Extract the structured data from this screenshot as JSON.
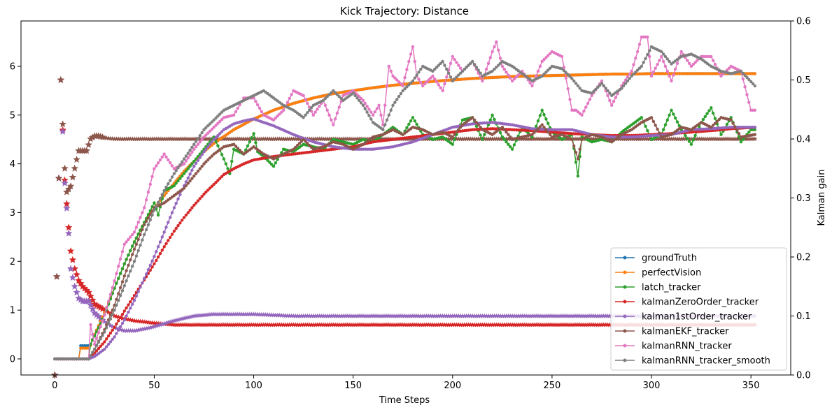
{
  "chart_data": {
    "type": "line",
    "title": "Kick Trajectory: Distance",
    "xlabel": "Time Steps",
    "ylabel": "",
    "y2label": "Kalman gain",
    "xlim": [
      -17,
      370
    ],
    "ylim": [
      -0.33,
      6.93
    ],
    "y2lim": [
      0.0,
      0.6
    ],
    "xticks": [
      0,
      50,
      100,
      150,
      200,
      250,
      300,
      350
    ],
    "yticks": [
      0,
      1,
      2,
      3,
      4,
      5,
      6
    ],
    "y2ticks": [
      0.0,
      0.1,
      0.2,
      0.3,
      0.4,
      0.5,
      0.6
    ],
    "grid": false,
    "legend_position": "lower right",
    "series": [
      {
        "name": "groundTruth",
        "color": "#1f77b4",
        "marker": "dot",
        "axis": "left",
        "x": [
          0,
          12,
          13,
          17,
          18,
          20,
          25,
          30,
          35,
          40,
          45,
          50,
          55,
          60,
          65,
          70,
          75,
          80,
          90,
          100,
          110,
          120,
          130,
          140,
          150,
          160,
          170,
          180,
          190,
          200,
          210,
          220,
          230,
          240,
          250,
          260,
          270,
          280,
          290,
          300,
          310,
          320,
          330,
          340,
          352
        ],
        "y": [
          0,
          0,
          0.27,
          0.27,
          0.3,
          0.5,
          0.95,
          1.45,
          1.95,
          2.4,
          2.8,
          3.1,
          3.35,
          3.6,
          3.85,
          4.05,
          4.25,
          4.42,
          4.7,
          4.92,
          5.1,
          5.24,
          5.35,
          5.44,
          5.5,
          5.56,
          5.61,
          5.65,
          5.69,
          5.72,
          5.75,
          5.77,
          5.79,
          5.8,
          5.81,
          5.82,
          5.83,
          5.84,
          5.84,
          5.85,
          5.85,
          5.85,
          5.85,
          5.85,
          5.85
        ]
      },
      {
        "name": "perfectVision",
        "color": "#ff7f0e",
        "marker": "dot",
        "axis": "left",
        "x": [
          0,
          12,
          13,
          17,
          18,
          20,
          25,
          30,
          35,
          40,
          45,
          50,
          55,
          60,
          65,
          70,
          75,
          80,
          90,
          100,
          110,
          120,
          130,
          140,
          150,
          160,
          170,
          180,
          190,
          200,
          210,
          220,
          230,
          240,
          250,
          260,
          270,
          280,
          290,
          300,
          310,
          320,
          330,
          340,
          352
        ],
        "y": [
          0,
          0,
          0.22,
          0.22,
          0.28,
          0.5,
          0.95,
          1.45,
          1.95,
          2.4,
          2.8,
          3.1,
          3.35,
          3.6,
          3.85,
          4.05,
          4.25,
          4.42,
          4.7,
          4.92,
          5.1,
          5.24,
          5.35,
          5.44,
          5.5,
          5.56,
          5.61,
          5.65,
          5.69,
          5.72,
          5.75,
          5.77,
          5.79,
          5.8,
          5.81,
          5.82,
          5.83,
          5.84,
          5.84,
          5.85,
          5.85,
          5.85,
          5.85,
          5.85,
          5.85
        ]
      },
      {
        "name": "latch_tracker",
        "color": "#2ca02c",
        "marker": "dot",
        "axis": "left",
        "x": [
          0,
          17,
          18,
          25,
          30,
          35,
          40,
          45,
          50,
          52,
          55,
          60,
          65,
          70,
          75,
          80,
          85,
          88,
          90,
          95,
          100,
          102,
          105,
          110,
          115,
          120,
          125,
          130,
          135,
          140,
          145,
          150,
          155,
          160,
          165,
          170,
          175,
          180,
          185,
          190,
          195,
          200,
          205,
          210,
          215,
          220,
          225,
          230,
          235,
          240,
          245,
          250,
          255,
          260,
          263,
          265,
          270,
          275,
          280,
          285,
          290,
          295,
          300,
          305,
          310,
          315,
          320,
          325,
          330,
          335,
          340,
          345,
          350,
          352
        ],
        "y": [
          0,
          0,
          0.3,
          0.9,
          1.45,
          1.95,
          2.4,
          2.8,
          3.2,
          2.95,
          3.45,
          3.55,
          3.8,
          4.05,
          4.3,
          4.55,
          4.1,
          3.8,
          4.3,
          4.2,
          4.62,
          4.25,
          4.15,
          3.95,
          4.3,
          4.25,
          4.4,
          4.35,
          4.3,
          4.5,
          4.45,
          4.4,
          4.5,
          4.45,
          4.6,
          4.75,
          4.6,
          4.95,
          4.6,
          4.5,
          4.55,
          4.4,
          4.9,
          4.95,
          4.5,
          5.0,
          4.55,
          4.3,
          4.75,
          4.55,
          5.1,
          4.65,
          4.5,
          4.6,
          3.75,
          4.55,
          4.45,
          4.5,
          4.45,
          4.65,
          4.8,
          4.95,
          4.5,
          4.6,
          5.1,
          4.7,
          4.4,
          4.85,
          5.15,
          4.6,
          4.95,
          4.45,
          4.7,
          4.7
        ]
      },
      {
        "name": "kalmanZeroOrder_tracker",
        "color": "#d62728",
        "marker": "dot",
        "axis": "left",
        "x": [
          0,
          17,
          20,
          25,
          30,
          35,
          40,
          45,
          50,
          55,
          60,
          65,
          70,
          75,
          80,
          85,
          90,
          95,
          100,
          110,
          120,
          130,
          140,
          150,
          160,
          170,
          180,
          190,
          200,
          210,
          220,
          230,
          240,
          250,
          260,
          270,
          280,
          290,
          300,
          310,
          320,
          330,
          340,
          352
        ],
        "y": [
          0,
          0,
          0.12,
          0.35,
          0.65,
          0.98,
          1.3,
          1.62,
          1.95,
          2.3,
          2.62,
          2.9,
          3.15,
          3.38,
          3.58,
          3.78,
          3.9,
          4.0,
          4.08,
          4.15,
          4.2,
          4.25,
          4.3,
          4.35,
          4.45,
          4.5,
          4.55,
          4.6,
          4.65,
          4.7,
          4.72,
          4.7,
          4.68,
          4.65,
          4.62,
          4.6,
          4.58,
          4.58,
          4.6,
          4.62,
          4.65,
          4.68,
          4.72,
          4.75
        ]
      },
      {
        "name": "kalman1stOrder_tracker",
        "color": "#9467bd",
        "marker": "dot",
        "axis": "left",
        "x": [
          0,
          17,
          20,
          25,
          30,
          35,
          40,
          45,
          50,
          55,
          60,
          65,
          70,
          75,
          80,
          85,
          90,
          95,
          100,
          105,
          110,
          120,
          130,
          140,
          150,
          160,
          170,
          180,
          190,
          200,
          210,
          220,
          230,
          240,
          250,
          260,
          270,
          280,
          290,
          300,
          310,
          320,
          330,
          340,
          352
        ],
        "y": [
          0,
          0,
          0.05,
          0.2,
          0.45,
          0.8,
          1.2,
          1.65,
          2.1,
          2.6,
          3.1,
          3.55,
          3.95,
          4.25,
          4.5,
          4.7,
          4.82,
          4.88,
          4.92,
          4.85,
          4.78,
          4.6,
          4.45,
          4.35,
          4.3,
          4.3,
          4.35,
          4.45,
          4.6,
          4.75,
          4.82,
          4.85,
          4.8,
          4.72,
          4.7,
          4.7,
          4.6,
          4.55,
          4.55,
          4.58,
          4.6,
          4.7,
          4.72,
          4.75,
          4.75
        ]
      },
      {
        "name": "kalmanEKF_tracker",
        "color": "#8c564b",
        "marker": "dot",
        "axis": "left",
        "x": [
          0,
          17,
          20,
          25,
          30,
          35,
          40,
          45,
          50,
          55,
          60,
          65,
          70,
          75,
          80,
          85,
          90,
          95,
          100,
          105,
          110,
          115,
          120,
          125,
          130,
          135,
          140,
          145,
          150,
          155,
          160,
          165,
          170,
          175,
          180,
          185,
          190,
          195,
          200,
          205,
          210,
          215,
          220,
          225,
          230,
          235,
          240,
          245,
          250,
          255,
          260,
          263,
          265,
          270,
          275,
          280,
          285,
          290,
          295,
          300,
          305,
          310,
          315,
          320,
          325,
          330,
          335,
          340,
          345,
          352
        ],
        "y": [
          0,
          0,
          0.2,
          0.6,
          1.1,
          1.7,
          2.25,
          2.75,
          3.1,
          3.2,
          3.35,
          3.5,
          3.75,
          4.0,
          4.2,
          4.35,
          4.4,
          4.2,
          4.35,
          4.2,
          4.1,
          4.2,
          4.3,
          4.5,
          4.3,
          4.35,
          4.45,
          4.4,
          4.3,
          4.4,
          4.55,
          4.6,
          4.7,
          4.6,
          4.75,
          4.7,
          4.6,
          4.65,
          4.55,
          4.8,
          4.95,
          4.7,
          4.6,
          4.75,
          4.5,
          4.55,
          4.6,
          4.8,
          4.55,
          4.6,
          4.5,
          4.1,
          4.5,
          4.6,
          4.55,
          4.45,
          4.6,
          4.7,
          4.85,
          4.95,
          4.55,
          4.6,
          4.75,
          4.7,
          4.85,
          4.75,
          4.95,
          4.9,
          4.55,
          4.6
        ]
      },
      {
        "name": "kalmanRNN_tracker",
        "color": "#e377c2",
        "marker": "dot",
        "axis": "left",
        "x": [
          0,
          17,
          18,
          20,
          25,
          30,
          35,
          40,
          45,
          50,
          55,
          60,
          65,
          70,
          75,
          80,
          85,
          90,
          95,
          100,
          105,
          110,
          115,
          120,
          125,
          130,
          135,
          140,
          145,
          150,
          155,
          160,
          163,
          165,
          168,
          170,
          175,
          178,
          180,
          182,
          185,
          190,
          195,
          200,
          205,
          210,
          215,
          220,
          222,
          225,
          230,
          235,
          240,
          245,
          250,
          255,
          260,
          262,
          265,
          270,
          275,
          280,
          285,
          290,
          293,
          295,
          298,
          300,
          305,
          310,
          315,
          320,
          325,
          330,
          335,
          340,
          345,
          350,
          352
        ],
        "y": [
          0,
          0,
          0.7,
          0.3,
          0.9,
          1.6,
          2.35,
          2.6,
          3.1,
          3.9,
          4.2,
          3.9,
          4.0,
          4.3,
          4.55,
          4.75,
          4.95,
          5.0,
          5.35,
          5.35,
          5.0,
          4.9,
          5.1,
          5.5,
          5.4,
          5.0,
          5.3,
          4.8,
          5.4,
          5.5,
          5.3,
          5.0,
          5.2,
          4.8,
          6.0,
          5.8,
          5.6,
          6.1,
          6.4,
          5.8,
          5.6,
          5.8,
          5.5,
          6.2,
          5.9,
          6.1,
          5.7,
          6.3,
          6.5,
          6.0,
          5.7,
          5.9,
          5.6,
          6.1,
          6.3,
          6.2,
          5.1,
          5.1,
          5.0,
          5.4,
          5.7,
          5.2,
          5.6,
          5.9,
          6.3,
          6.6,
          6.6,
          5.8,
          6.2,
          5.7,
          6.3,
          6.0,
          6.2,
          6.2,
          5.8,
          6.0,
          5.9,
          5.1,
          5.1
        ]
      },
      {
        "name": "kalmanRNN_tracker_smooth",
        "color": "#7f7f7f",
        "marker": "dot",
        "axis": "left",
        "x": [
          0,
          17,
          20,
          25,
          30,
          35,
          40,
          45,
          50,
          55,
          60,
          65,
          70,
          75,
          80,
          85,
          90,
          95,
          100,
          105,
          110,
          115,
          120,
          125,
          130,
          135,
          140,
          145,
          150,
          155,
          160,
          165,
          170,
          175,
          180,
          185,
          190,
          195,
          200,
          205,
          210,
          215,
          220,
          225,
          230,
          235,
          240,
          245,
          250,
          255,
          260,
          265,
          270,
          275,
          280,
          285,
          290,
          295,
          300,
          305,
          310,
          315,
          320,
          325,
          330,
          335,
          340,
          345,
          352
        ],
        "y": [
          0,
          0,
          0.2,
          0.55,
          1.0,
          1.5,
          2.0,
          2.55,
          3.05,
          3.45,
          3.8,
          4.1,
          4.4,
          4.7,
          4.9,
          5.1,
          5.2,
          5.3,
          5.4,
          5.5,
          5.35,
          5.2,
          5.1,
          4.95,
          5.2,
          5.3,
          5.5,
          5.3,
          5.45,
          5.2,
          4.85,
          4.7,
          5.2,
          5.5,
          5.7,
          6.0,
          5.9,
          6.1,
          5.7,
          5.9,
          6.1,
          5.8,
          5.9,
          6.1,
          6.0,
          5.85,
          5.7,
          5.8,
          6.0,
          5.95,
          5.75,
          5.5,
          5.45,
          5.65,
          5.4,
          5.55,
          5.8,
          6.0,
          6.4,
          6.3,
          6.05,
          6.2,
          6.25,
          6.15,
          6.0,
          5.9,
          5.85,
          5.9,
          5.6
        ]
      }
    ],
    "gain_series": [
      {
        "name": "kalmanZeroOrder_tracker_gain",
        "color": "#d62728",
        "marker": "star",
        "axis": "right",
        "x": [
          0,
          3,
          5,
          7,
          8,
          10,
          12,
          14,
          17,
          20,
          25,
          30,
          35,
          40,
          45,
          50,
          60,
          80,
          100,
          150,
          200,
          250,
          300,
          352
        ],
        "y": [
          0.0,
          0.5,
          0.33,
          0.25,
          0.21,
          0.18,
          0.16,
          0.15,
          0.14,
          0.12,
          0.11,
          0.1,
          0.095,
          0.092,
          0.09,
          0.088,
          0.085,
          0.085,
          0.085,
          0.085,
          0.085,
          0.085,
          0.085,
          0.085
        ]
      },
      {
        "name": "kalman1stOrder_tracker_gain",
        "color": "#9467bd",
        "marker": "star",
        "axis": "right",
        "x": [
          0,
          3,
          5,
          7,
          8,
          10,
          12,
          14,
          17,
          20,
          25,
          30,
          35,
          40,
          45,
          50,
          55,
          60,
          65,
          70,
          80,
          100,
          120,
          150,
          200,
          250,
          300,
          352
        ],
        "y": [
          0.0,
          0.5,
          0.325,
          0.24,
          0.18,
          0.15,
          0.13,
          0.125,
          0.125,
          0.105,
          0.09,
          0.08,
          0.075,
          0.075,
          0.078,
          0.082,
          0.087,
          0.092,
          0.096,
          0.1,
          0.103,
          0.103,
          0.1,
          0.1,
          0.1,
          0.1,
          0.1,
          0.1
        ]
      },
      {
        "name": "kalmanEKF_tracker_gain",
        "color": "#8c564b",
        "marker": "star",
        "axis": "right",
        "x": [
          0,
          3,
          5,
          6,
          8,
          10,
          12,
          14,
          16,
          18,
          20,
          22,
          25,
          30,
          40,
          60,
          100,
          150,
          200,
          250,
          300,
          352
        ],
        "y": [
          0.0,
          0.5,
          0.35,
          0.31,
          0.32,
          0.35,
          0.38,
          0.38,
          0.38,
          0.4,
          0.405,
          0.405,
          0.402,
          0.4,
          0.4,
          0.4,
          0.4,
          0.4,
          0.4,
          0.4,
          0.4,
          0.4
        ]
      }
    ]
  }
}
